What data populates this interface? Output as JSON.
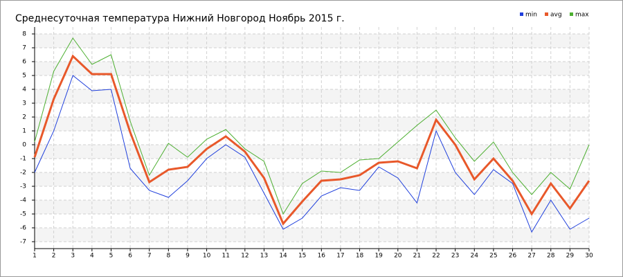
{
  "chart_data": {
    "type": "line",
    "title": "Среднесуточная температура Нижний Новгород  Ноябрь 2015 г.",
    "categories": [
      "1",
      "2",
      "3",
      "4",
      "5",
      "6",
      "7",
      "8",
      "9",
      "10",
      "11",
      "12",
      "13",
      "14",
      "15",
      "16",
      "17",
      "18",
      "19",
      "20",
      "21",
      "22",
      "23",
      "24",
      "25",
      "26",
      "27",
      "28",
      "29",
      "30"
    ],
    "series": [
      {
        "name": "min",
        "color": "#1f3fdc",
        "values": [
          -2.0,
          1.0,
          5.0,
          3.9,
          4.0,
          -1.7,
          -3.3,
          -3.8,
          -2.6,
          -1.0,
          0.0,
          -0.9,
          -3.5,
          -6.1,
          -5.3,
          -3.7,
          -3.1,
          -3.3,
          -1.6,
          -2.4,
          -4.2,
          1.0,
          -2.0,
          -3.6,
          -1.8,
          -2.8,
          -6.3,
          -4.0,
          -6.1,
          -5.3
        ]
      },
      {
        "name": "avg",
        "color": "#e8582a",
        "values": [
          -0.9,
          3.3,
          6.4,
          5.1,
          5.1,
          0.9,
          -2.7,
          -1.8,
          -1.6,
          -0.3,
          0.6,
          -0.5,
          -2.4,
          -5.7,
          -4.1,
          -2.6,
          -2.5,
          -2.2,
          -1.3,
          -1.2,
          -1.7,
          1.8,
          0.0,
          -2.5,
          -1.0,
          -2.6,
          -5.0,
          -2.8,
          -4.6,
          -2.6
        ]
      },
      {
        "name": "max",
        "color": "#4caf30",
        "values": [
          0.2,
          5.3,
          7.7,
          5.8,
          6.5,
          1.7,
          -2.2,
          0.1,
          -0.9,
          0.4,
          1.1,
          -0.3,
          -1.2,
          -5.0,
          -2.8,
          -1.9,
          -2.0,
          -1.1,
          -1.0,
          0.2,
          1.4,
          2.5,
          0.5,
          -1.2,
          0.2,
          -2.0,
          -3.6,
          -2.0,
          -3.2,
          0.0
        ]
      }
    ],
    "ylim": [
      -7.5,
      8.5
    ],
    "yticks": [
      -7,
      -6,
      -5,
      -4,
      -3,
      -2,
      -1,
      0,
      1,
      2,
      3,
      4,
      5,
      6,
      7,
      8
    ],
    "grid": true
  }
}
